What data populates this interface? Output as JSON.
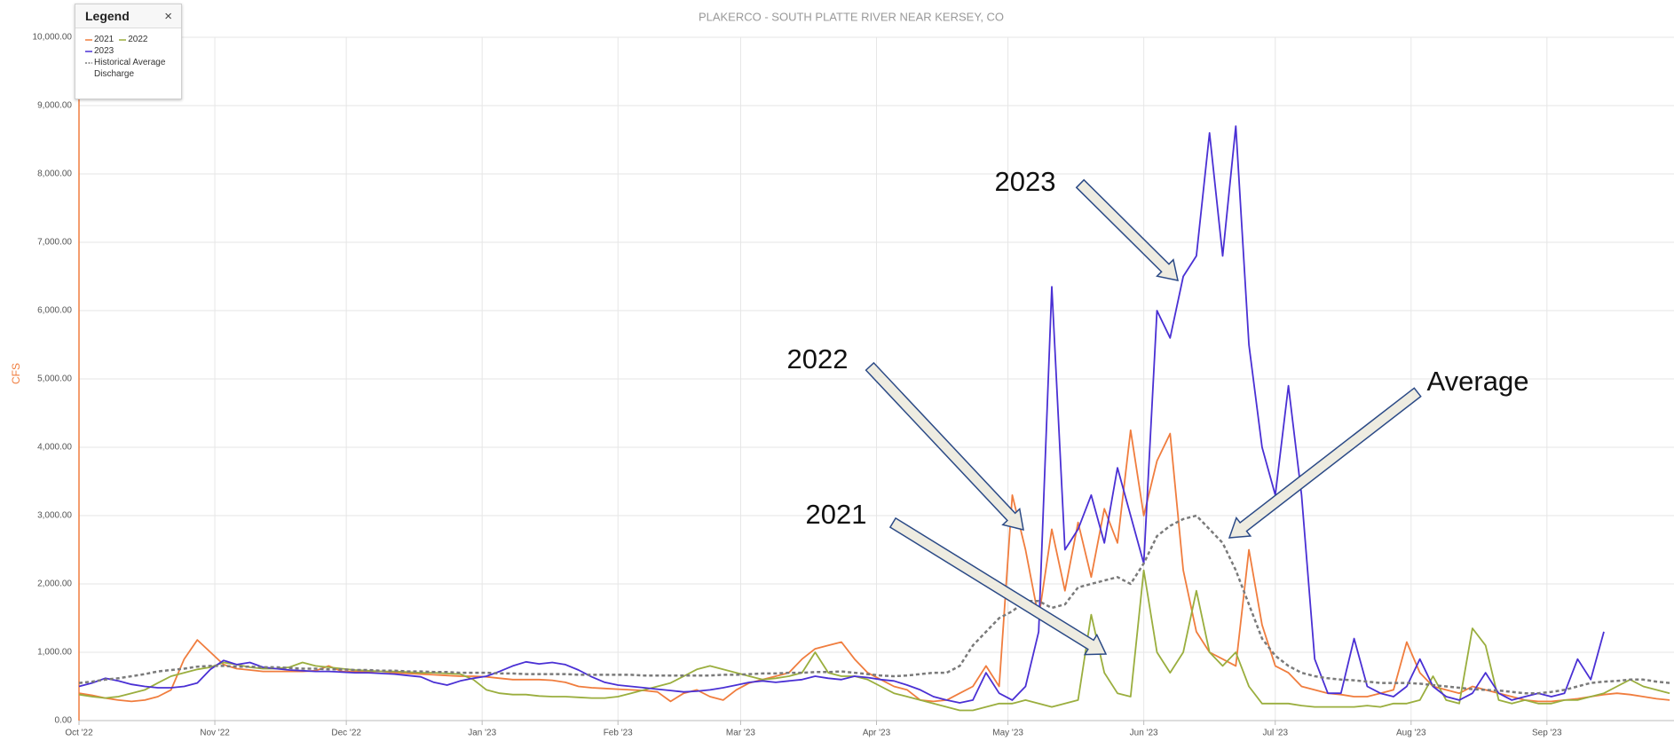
{
  "chart_data": {
    "type": "line",
    "title": "PLAKERCO - SOUTH PLATTE RIVER NEAR KERSEY, CO",
    "y_label": "CFS",
    "legend_title": "Legend",
    "legend_close": "×",
    "legend_position": "top-left",
    "grid": true,
    "xlim": [
      0,
      364
    ],
    "xticks": [
      {
        "value": 0,
        "label": "Oct '22"
      },
      {
        "value": 31,
        "label": "Nov '22"
      },
      {
        "value": 61,
        "label": "Dec '22"
      },
      {
        "value": 92,
        "label": "Jan '23"
      },
      {
        "value": 123,
        "label": "Feb '23"
      },
      {
        "value": 151,
        "label": "Mar '23"
      },
      {
        "value": 182,
        "label": "Apr '23"
      },
      {
        "value": 212,
        "label": "May '23"
      },
      {
        "value": 243,
        "label": "Jun '23"
      },
      {
        "value": 273,
        "label": "Jul '23"
      },
      {
        "value": 304,
        "label": "Aug '23"
      },
      {
        "value": 335,
        "label": "Sep '23"
      }
    ],
    "ylim": [
      0,
      10000
    ],
    "yticks": [
      {
        "value": 0,
        "label": "0.00"
      },
      {
        "value": 1000,
        "label": "1,000.00"
      },
      {
        "value": 2000,
        "label": "2,000.00"
      },
      {
        "value": 3000,
        "label": "3,000.00"
      },
      {
        "value": 4000,
        "label": "4,000.00"
      },
      {
        "value": 5000,
        "label": "5,000.00"
      },
      {
        "value": 6000,
        "label": "6,000.00"
      },
      {
        "value": 7000,
        "label": "7,000.00"
      },
      {
        "value": 8000,
        "label": "8,000.00"
      },
      {
        "value": 9000,
        "label": "9,000.00"
      },
      {
        "value": 10000,
        "label": "10,000.00"
      }
    ],
    "x": [
      0,
      3,
      6,
      9,
      12,
      15,
      18,
      21,
      24,
      27,
      30,
      33,
      36,
      39,
      42,
      45,
      48,
      51,
      54,
      57,
      60,
      63,
      66,
      69,
      72,
      75,
      78,
      81,
      84,
      87,
      90,
      93,
      96,
      99,
      102,
      105,
      108,
      111,
      114,
      117,
      120,
      123,
      126,
      129,
      132,
      135,
      138,
      141,
      144,
      147,
      150,
      153,
      156,
      159,
      162,
      165,
      168,
      171,
      174,
      177,
      180,
      183,
      186,
      189,
      192,
      195,
      198,
      201,
      204,
      207,
      210,
      213,
      216,
      219,
      222,
      225,
      228,
      231,
      234,
      237,
      240,
      243,
      246,
      249,
      252,
      255,
      258,
      261,
      264,
      267,
      270,
      273,
      276,
      279,
      282,
      285,
      288,
      291,
      294,
      297,
      300,
      303,
      306,
      309,
      312,
      315,
      318,
      321,
      324,
      327,
      330,
      333,
      336,
      339,
      342,
      345,
      348,
      351,
      354,
      357,
      360,
      363
    ],
    "series": [
      {
        "name": "2021",
        "color": "#f07d3e",
        "dashed": false,
        "values": [
          400,
          370,
          330,
          300,
          280,
          300,
          350,
          450,
          900,
          1180,
          1000,
          820,
          760,
          740,
          720,
          720,
          720,
          720,
          730,
          800,
          720,
          720,
          720,
          720,
          700,
          690,
          680,
          670,
          660,
          650,
          650,
          640,
          620,
          600,
          600,
          600,
          590,
          560,
          500,
          480,
          470,
          460,
          450,
          440,
          420,
          280,
          400,
          450,
          350,
          300,
          450,
          550,
          600,
          650,
          700,
          900,
          1050,
          1100,
          1150,
          900,
          700,
          600,
          500,
          450,
          300,
          280,
          300,
          400,
          500,
          800,
          500,
          3300,
          2500,
          1500,
          2800,
          1900,
          2900,
          2100,
          3100,
          2600,
          4250,
          3000,
          3800,
          4200,
          2200,
          1300,
          1000,
          900,
          800,
          2500,
          1400,
          800,
          700,
          500,
          450,
          400,
          380,
          350,
          350,
          400,
          450,
          1150,
          700,
          500,
          450,
          400,
          500,
          450,
          400,
          350,
          300,
          280,
          280,
          300,
          320,
          350,
          380,
          400,
          380,
          350,
          320,
          300
        ]
      },
      {
        "name": "2022",
        "color": "#9aae3e",
        "dashed": false,
        "values": [
          380,
          350,
          330,
          350,
          400,
          450,
          550,
          650,
          700,
          750,
          780,
          850,
          820,
          780,
          760,
          760,
          780,
          850,
          800,
          780,
          760,
          740,
          730,
          720,
          720,
          710,
          700,
          700,
          690,
          680,
          600,
          450,
          400,
          380,
          380,
          360,
          350,
          350,
          340,
          330,
          330,
          350,
          400,
          450,
          500,
          550,
          650,
          750,
          800,
          750,
          700,
          650,
          600,
          620,
          650,
          700,
          1000,
          700,
          650,
          650,
          600,
          500,
          400,
          350,
          300,
          250,
          200,
          150,
          150,
          200,
          250,
          250,
          300,
          250,
          200,
          250,
          300,
          1550,
          700,
          400,
          350,
          2200,
          1000,
          700,
          1000,
          1900,
          1000,
          800,
          1000,
          500,
          250,
          250,
          250,
          220,
          200,
          200,
          200,
          200,
          220,
          200,
          250,
          250,
          300,
          650,
          300,
          250,
          1350,
          1100,
          300,
          250,
          300,
          250,
          250,
          300,
          300,
          350,
          400,
          500,
          600,
          500,
          450,
          400
        ]
      },
      {
        "name": "2023",
        "color": "#4a30d4",
        "dashed": false,
        "values": [
          500,
          550,
          620,
          580,
          530,
          500,
          480,
          480,
          500,
          550,
          750,
          880,
          820,
          850,
          780,
          760,
          740,
          730,
          720,
          720,
          710,
          700,
          700,
          690,
          680,
          660,
          640,
          560,
          520,
          580,
          620,
          650,
          720,
          800,
          860,
          830,
          850,
          820,
          740,
          640,
          560,
          520,
          500,
          480,
          460,
          440,
          420,
          430,
          450,
          480,
          520,
          560,
          580,
          560,
          580,
          600,
          650,
          620,
          600,
          650,
          630,
          600,
          580,
          520,
          450,
          350,
          300,
          260,
          300,
          700,
          400,
          300,
          500,
          1300,
          6350,
          2500,
          2800,
          3300,
          2600,
          3700,
          3000,
          2300,
          6000,
          5600,
          6500,
          6800,
          8600,
          6800,
          8700,
          5500,
          4000,
          3300,
          4900,
          3300,
          900,
          400,
          400,
          1200,
          500,
          400,
          350,
          500,
          900,
          500,
          350,
          300,
          400,
          700,
          400,
          300,
          350,
          400,
          350,
          400,
          900,
          600,
          1300,
          null,
          null,
          null,
          null,
          null
        ]
      },
      {
        "name": "Historical Average Discharge",
        "color": "#7a7a7a",
        "dashed": true,
        "values": [
          550,
          570,
          600,
          620,
          650,
          680,
          720,
          740,
          760,
          790,
          800,
          800,
          790,
          790,
          780,
          780,
          770,
          760,
          760,
          750,
          750,
          740,
          740,
          730,
          730,
          720,
          720,
          710,
          710,
          700,
          700,
          700,
          690,
          690,
          680,
          680,
          680,
          680,
          670,
          670,
          670,
          670,
          670,
          660,
          660,
          660,
          660,
          660,
          660,
          670,
          670,
          680,
          690,
          690,
          700,
          700,
          710,
          710,
          720,
          700,
          680,
          660,
          650,
          660,
          680,
          700,
          700,
          800,
          1100,
          1300,
          1500,
          1600,
          1750,
          1750,
          1650,
          1700,
          1950,
          2000,
          2050,
          2100,
          2000,
          2300,
          2700,
          2850,
          2950,
          3000,
          2800,
          2600,
          2200,
          1700,
          1200,
          950,
          800,
          700,
          650,
          620,
          600,
          590,
          570,
          550,
          550,
          550,
          540,
          520,
          500,
          480,
          460,
          450,
          440,
          420,
          400,
          400,
          420,
          450,
          500,
          550,
          570,
          580,
          600,
          600,
          570,
          550
        ]
      }
    ],
    "annotations": [
      "2023",
      "2022",
      "2021",
      "Average"
    ]
  }
}
